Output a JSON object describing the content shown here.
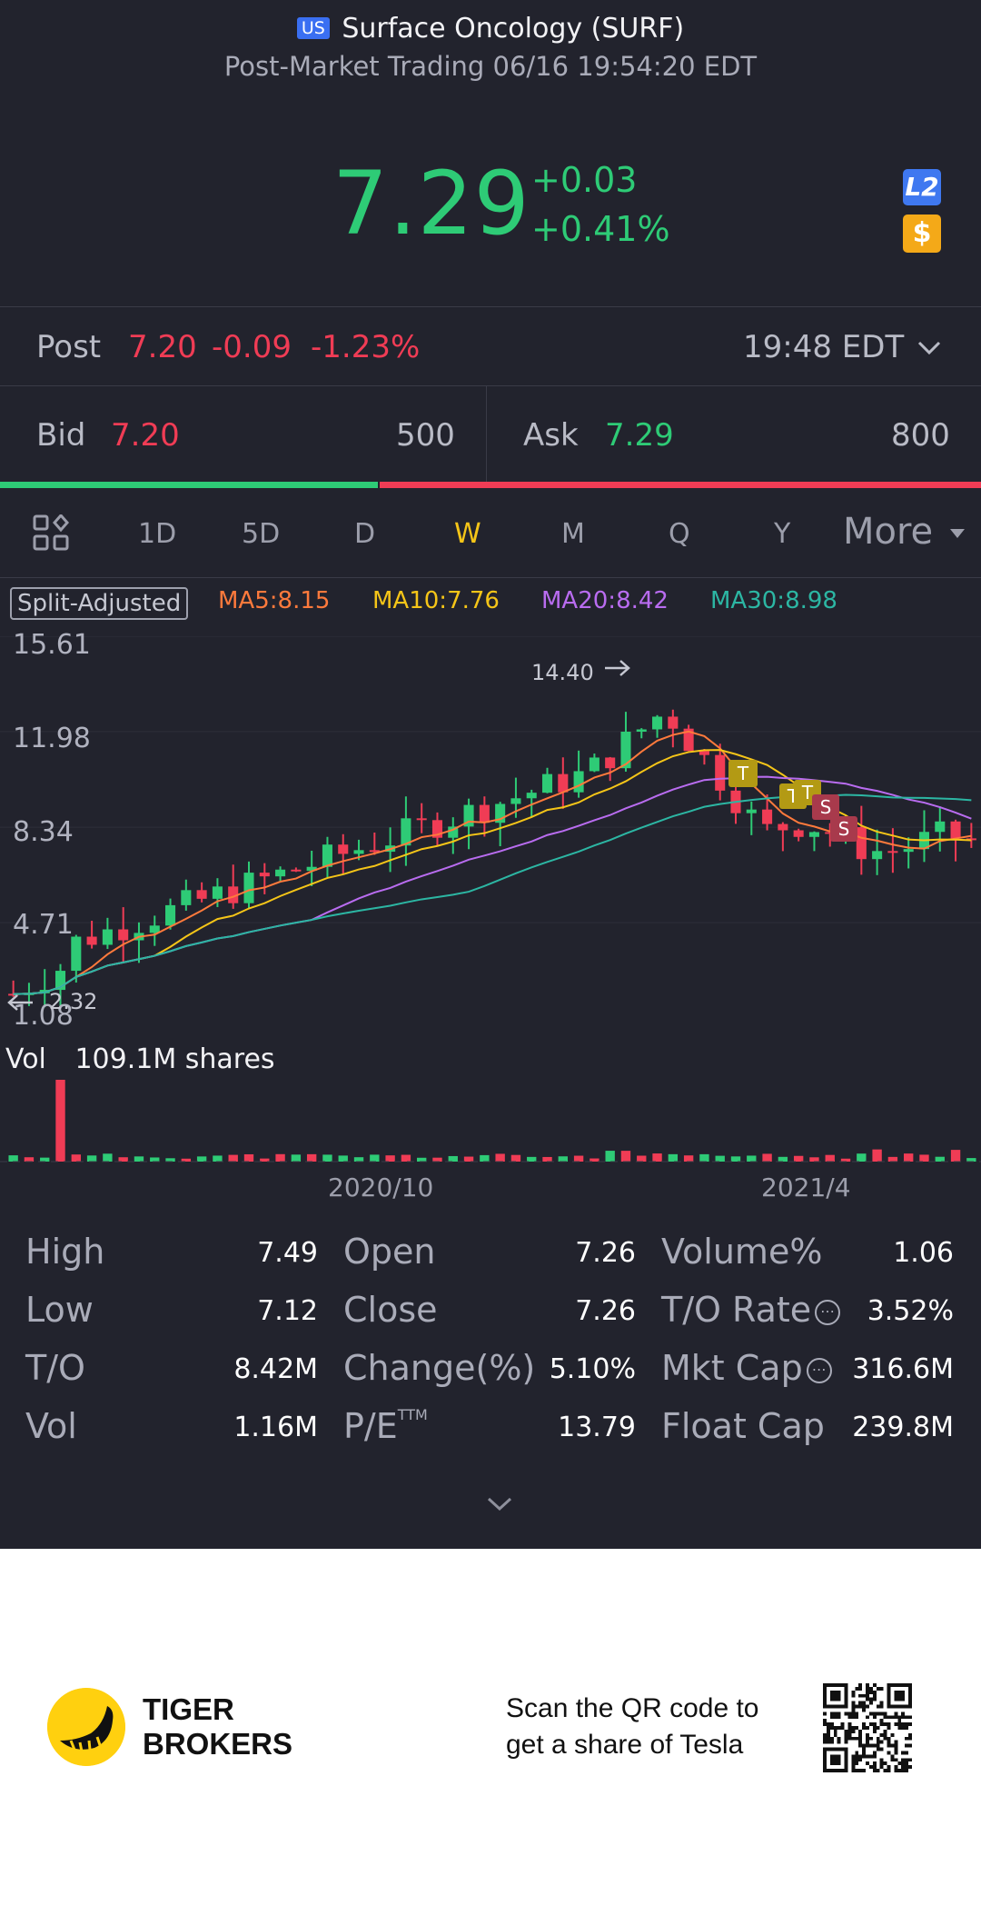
{
  "header": {
    "market_badge": "US",
    "title": "Surface Oncology (SURF)",
    "subtitle": "Post-Market Trading 06/16 19:54:20 EDT"
  },
  "quote": {
    "price": "7.29",
    "change": "+0.03",
    "change_pct": "+0.41%",
    "l2_label": "L2",
    "dollar_label": "$"
  },
  "post": {
    "label": "Post",
    "price": "7.20",
    "change": "-0.09",
    "change_pct": "-1.23%",
    "time": "19:48 EDT"
  },
  "bid": {
    "label": "Bid",
    "price": "7.20",
    "size": "500"
  },
  "ask": {
    "label": "Ask",
    "price": "7.29",
    "size": "800"
  },
  "bid_ask_ratio": 0.385,
  "tabs": {
    "items": [
      "1D",
      "5D",
      "D",
      "W",
      "M",
      "Q",
      "Y"
    ],
    "active": "W",
    "more": "More"
  },
  "indicators": {
    "split": "Split-Adjusted",
    "ma5": "MA5:8.15",
    "ma10": "MA10:7.76",
    "ma20": "MA20:8.42",
    "ma30": "MA30:8.98",
    "colors": {
      "ma5": "#ff7a3c",
      "ma10": "#f5c518",
      "ma20": "#b96cf0",
      "ma30": "#2cb6a3",
      "up": "#2ecb76",
      "down": "#f03c55"
    }
  },
  "chart_data": {
    "type": "candlestick",
    "y_ticks": [
      "15.61",
      "11.98",
      "8.34",
      "4.71",
      "1.08"
    ],
    "ylim": [
      1.08,
      15.61
    ],
    "high_marker": "14.40",
    "low_marker": "2.32",
    "x_labels": [
      "2020/10",
      "2021/4"
    ],
    "markers": [
      "T",
      "T",
      "T",
      "S",
      "S"
    ]
  },
  "volume": {
    "label": "Vol",
    "value": "109.1M shares"
  },
  "stats": [
    [
      {
        "label": "High",
        "value": "7.49"
      },
      {
        "label": "Open",
        "value": "7.26"
      },
      {
        "label": "Volume%",
        "value": "1.06"
      }
    ],
    [
      {
        "label": "Low",
        "value": "7.12"
      },
      {
        "label": "Close",
        "value": "7.26"
      },
      {
        "label": "T/O Rate",
        "value": "3.52%"
      }
    ],
    [
      {
        "label": "T/O",
        "value": "8.42M"
      },
      {
        "label": "Change(%)",
        "value": "5.10%"
      },
      {
        "label": "Mkt Cap",
        "value": "316.6M"
      }
    ],
    [
      {
        "label": "Vol",
        "value": "1.16M"
      },
      {
        "label": "P/E",
        "sup": "TTM",
        "value": "13.79"
      },
      {
        "label": "Float Cap",
        "value": "239.8M"
      }
    ]
  ],
  "footer": {
    "brand_line1": "TIGER",
    "brand_line2": "BROKERS",
    "scan_line1": "Scan the QR code to",
    "scan_line2": "get a share of Tesla"
  }
}
